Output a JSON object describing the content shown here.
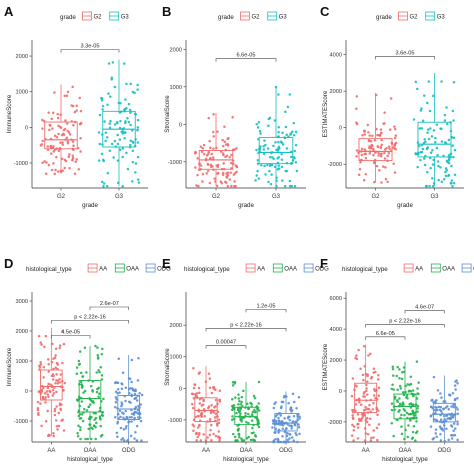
{
  "figure": {
    "colors": {
      "red": "#f26b6b",
      "green": "#22b24c",
      "teal": "#17bfc0",
      "blue": "#5a8fd6",
      "axis": "#333333",
      "bracket": "#444444"
    }
  },
  "chart_data": [
    {
      "panel": "A",
      "type": "boxplot",
      "legend": {
        "title": "grade",
        "entries": [
          "G2",
          "G3"
        ],
        "placement": "top"
      },
      "xlabel": "grade",
      "ylabel": "ImmuneScore",
      "categories": [
        "G2",
        "G3"
      ],
      "yticks": [
        -1000,
        0,
        1000,
        2000
      ],
      "ylim": [
        -1700,
        2450
      ],
      "boxes": [
        {
          "q1": -600,
          "median": -350,
          "q3": 150,
          "whislo": -1300,
          "whishi": 1200
        },
        {
          "q1": -550,
          "median": -50,
          "q3": 450,
          "whislo": -1650,
          "whishi": 1900
        }
      ],
      "comparisons": [
        {
          "groups": [
            1,
            2
          ],
          "label": "3.3e-05",
          "y": 2180
        }
      ]
    },
    {
      "panel": "B",
      "type": "boxplot",
      "legend": {
        "title": "grade",
        "entries": [
          "G2",
          "G3"
        ],
        "placement": "top"
      },
      "xlabel": "grade",
      "ylabel": "StromalScore",
      "categories": [
        "G2",
        "G3"
      ],
      "yticks": [
        -1000,
        0,
        1000,
        2000
      ],
      "ylim": [
        -1700,
        2250
      ],
      "boxes": [
        {
          "q1": -1200,
          "median": -950,
          "q3": -700,
          "whislo": -1650,
          "whishi": 300
        },
        {
          "q1": -1050,
          "median": -750,
          "q3": -350,
          "whislo": -1650,
          "whishi": 1000
        }
      ],
      "comparisons": [
        {
          "groups": [
            1,
            2
          ],
          "label": "6.6e-05",
          "y": 1750
        }
      ]
    },
    {
      "panel": "C",
      "type": "boxplot",
      "legend": {
        "title": "grade",
        "entries": [
          "G2",
          "G3"
        ],
        "placement": "top"
      },
      "xlabel": "grade",
      "ylabel": "ESTIMATEScore",
      "categories": [
        "G2",
        "G3"
      ],
      "yticks": [
        -2000,
        0,
        2000,
        4000
      ],
      "ylim": [
        -3300,
        4800
      ],
      "boxes": [
        {
          "q1": -1800,
          "median": -1300,
          "q3": -600,
          "whislo": -3000,
          "whishi": 1900
        },
        {
          "q1": -1600,
          "median": -900,
          "q3": 300,
          "whislo": -3200,
          "whishi": 3000
        }
      ],
      "comparisons": [
        {
          "groups": [
            1,
            2
          ],
          "label": "3.6e-05",
          "y": 3900
        }
      ]
    },
    {
      "panel": "D",
      "type": "boxplot",
      "legend": {
        "title": "histological_type",
        "entries": [
          "AA",
          "OAA",
          "ODG"
        ],
        "placement": "top"
      },
      "xlabel": "histological_type",
      "ylabel": "ImmuneScore",
      "categories": [
        "AA",
        "OAA",
        "ODG"
      ],
      "yticks": [
        -1000,
        0,
        1000,
        2000,
        3000
      ],
      "ylim": [
        -1700,
        3300
      ],
      "boxes": [
        {
          "q1": -300,
          "median": 150,
          "q3": 700,
          "whislo": -1500,
          "whishi": 2100
        },
        {
          "q1": -700,
          "median": -250,
          "q3": 350,
          "whislo": -1600,
          "whishi": 1500
        },
        {
          "q1": -950,
          "median": -600,
          "q3": -150,
          "whislo": -1650,
          "whishi": 1200
        }
      ],
      "comparisons": [
        {
          "groups": [
            1,
            2
          ],
          "label": "4.5e-05",
          "y": 1850
        },
        {
          "groups": [
            1,
            3
          ],
          "label": "p < 2.22e-16",
          "y": 2350
        },
        {
          "groups": [
            2,
            3
          ],
          "label": "2.6e-07",
          "y": 2800
        }
      ]
    },
    {
      "panel": "E",
      "type": "boxplot",
      "legend": {
        "title": "histological_type",
        "entries": [
          "AA",
          "OAA",
          "ODG"
        ],
        "placement": "top"
      },
      "xlabel": "histological_type",
      "ylabel": "StromalScore",
      "categories": [
        "AA",
        "OAA",
        "ODG"
      ],
      "yticks": [
        -1000,
        0,
        1000,
        2000
      ],
      "ylim": [
        -1700,
        3050
      ],
      "boxes": [
        {
          "q1": -1050,
          "median": -700,
          "q3": -300,
          "whislo": -1650,
          "whishi": 700
        },
        {
          "q1": -1150,
          "median": -900,
          "q3": -600,
          "whislo": -1650,
          "whishi": 200
        },
        {
          "q1": -1350,
          "median": -1100,
          "q3": -800,
          "whislo": -1700,
          "whishi": -100
        }
      ],
      "comparisons": [
        {
          "groups": [
            1,
            2
          ],
          "label": "0.00047",
          "y": 1350
        },
        {
          "groups": [
            1,
            3
          ],
          "label": "p < 2.22e-16",
          "y": 1900
        },
        {
          "groups": [
            2,
            3
          ],
          "label": "1.2e-05",
          "y": 2500
        }
      ]
    },
    {
      "panel": "F",
      "type": "boxplot",
      "legend": {
        "title": "histological_type",
        "entries": [
          "AA",
          "OAA",
          "ODG"
        ],
        "placement": "top"
      },
      "xlabel": "histological_type",
      "ylabel": "ESTIMATEScore",
      "categories": [
        "AA",
        "OAA",
        "ODG"
      ],
      "yticks": [
        -2000,
        0,
        2000,
        4000,
        6000
      ],
      "ylim": [
        -3300,
        6400
      ],
      "boxes": [
        {
          "q1": -1400,
          "median": -600,
          "q3": 500,
          "whislo": -3200,
          "whishi": 3000
        },
        {
          "q1": -1800,
          "median": -1000,
          "q3": -200,
          "whislo": -3200,
          "whishi": 1900
        },
        {
          "q1": -2000,
          "median": -1500,
          "q3": -800,
          "whislo": -3300,
          "whishi": 1000
        }
      ],
      "comparisons": [
        {
          "groups": [
            1,
            2
          ],
          "label": "6.6e-05",
          "y": 3500
        },
        {
          "groups": [
            1,
            3
          ],
          "label": "p < 2.22e-16",
          "y": 4300
        },
        {
          "groups": [
            2,
            3
          ],
          "label": "4.6e-07",
          "y": 5200
        }
      ]
    }
  ]
}
